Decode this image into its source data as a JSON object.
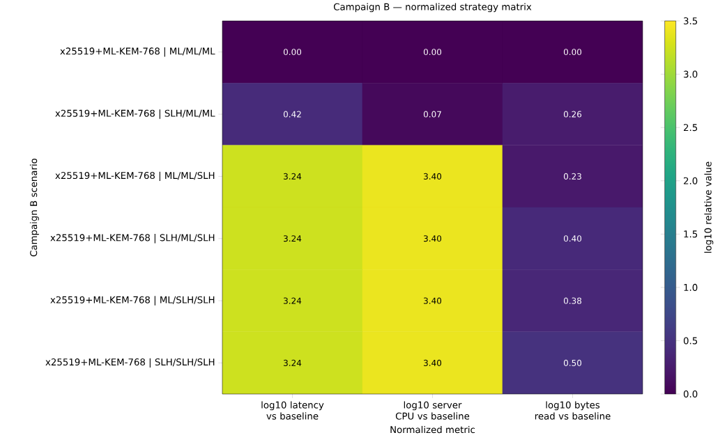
{
  "chart_data": {
    "type": "heatmap",
    "title": "Campaign B — normalized strategy matrix",
    "xlabel": "Normalized metric",
    "ylabel": "Campaign B scenario",
    "clabel": "log10 relative value",
    "categories": [
      "log10 latency vs baseline",
      "log10 server CPU vs baseline",
      "log10 bytes read vs baseline"
    ],
    "y_categories": [
      "x25519+ML-KEM-768 | ML/ML/ML",
      "x25519+ML-KEM-768 | SLH/ML/ML",
      "x25519+ML-KEM-768 | ML/ML/SLH",
      "x25519+ML-KEM-768 | SLH/ML/SLH",
      "x25519+ML-KEM-768 | ML/SLH/SLH",
      "x25519+ML-KEM-768 | SLH/SLH/SLH"
    ],
    "cells": [
      [
        0.0,
        0.0,
        0.0
      ],
      [
        0.42,
        0.07,
        0.26
      ],
      [
        3.24,
        3.4,
        0.23
      ],
      [
        3.24,
        3.4,
        0.4
      ],
      [
        3.24,
        3.4,
        0.38
      ],
      [
        3.24,
        3.4,
        0.5
      ]
    ],
    "cell_labels": [
      [
        "0.00",
        "0.00",
        "0.00"
      ],
      [
        "0.42",
        "0.07",
        "0.26"
      ],
      [
        "3.24",
        "3.40",
        "0.23"
      ],
      [
        "3.24",
        "3.40",
        "0.40"
      ],
      [
        "3.24",
        "3.40",
        "0.38"
      ],
      [
        "3.24",
        "3.40",
        "0.50"
      ]
    ],
    "clim": [
      0,
      3.5
    ],
    "cticks": [
      {
        "value": 0,
        "label": "0.0"
      },
      {
        "value": 0.5,
        "label": "0.5"
      },
      {
        "value": 1,
        "label": "1.0"
      },
      {
        "value": 1.5,
        "label": "1.5"
      },
      {
        "value": 2,
        "label": "2.0"
      },
      {
        "value": 2.5,
        "label": "2.5"
      },
      {
        "value": 3,
        "label": "3.0"
      },
      {
        "value": 3.5,
        "label": "3.5"
      }
    ]
  }
}
